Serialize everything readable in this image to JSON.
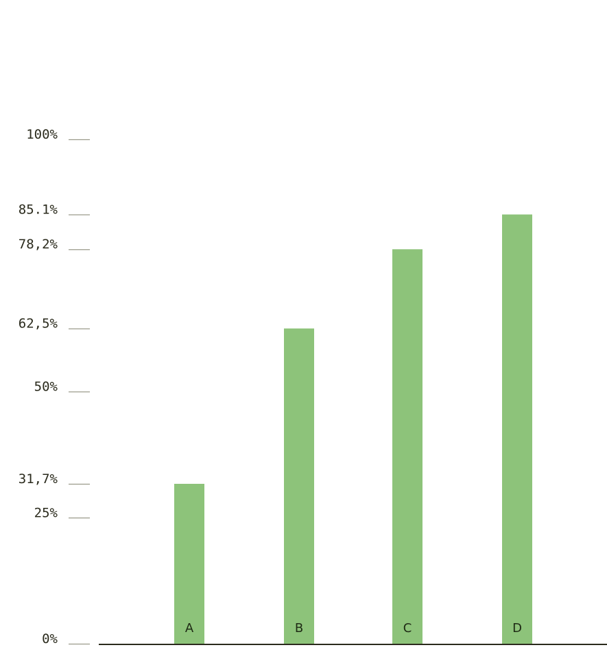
{
  "chart_data": {
    "type": "bar",
    "categories": [
      "A",
      "B",
      "C",
      "D"
    ],
    "values": [
      31.7,
      62.5,
      78.2,
      85.1
    ],
    "ylim": [
      0,
      100
    ],
    "yticks": [
      {
        "value": 100,
        "label": "100%"
      },
      {
        "value": 85.1,
        "label": "85.1%"
      },
      {
        "value": 78.2,
        "label": "78,2%"
      },
      {
        "value": 62.5,
        "label": "62,5%"
      },
      {
        "value": 50,
        "label": "50%"
      },
      {
        "value": 31.7,
        "label": "31,7%"
      },
      {
        "value": 25,
        "label": "25%"
      },
      {
        "value": 0,
        "label": "0%"
      }
    ],
    "title": "",
    "xlabel": "",
    "ylabel": "",
    "grid": false,
    "legend": "none",
    "colors": {
      "bar": "#8dc37a",
      "axis": "#2a2a1c",
      "tick": "#9a9a8a",
      "text": "#2a2a1c"
    }
  }
}
